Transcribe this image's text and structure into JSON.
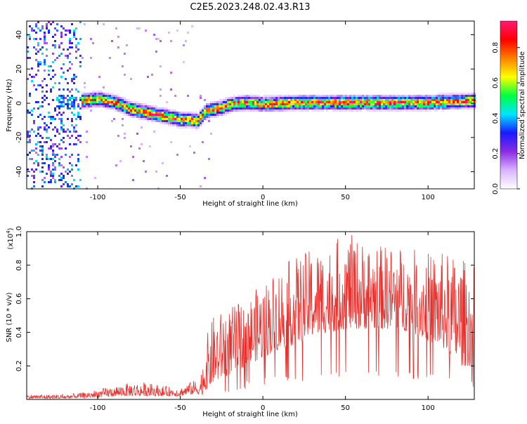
{
  "page_title": "C2E5.2023.248.02.43.R13",
  "chart_data": [
    {
      "type": "heatmap",
      "xlabel": "Height of straight line (km)",
      "ylabel": "Frequency (Hz)",
      "xlim": [
        -143,
        128
      ],
      "ylim": [
        -50,
        48
      ],
      "xticks": [
        -100,
        -50,
        0,
        50,
        100
      ],
      "yticks": [
        -40,
        -20,
        0,
        20,
        40
      ],
      "colorbar": {
        "label": "Normalized spectral amplitude",
        "range": [
          0.0,
          0.95
        ],
        "ticks": [
          "0.0",
          "0.2",
          "0.4",
          "0.6",
          "0.8"
        ],
        "tick_values": [
          0.0,
          0.2,
          0.4,
          0.6,
          0.8
        ],
        "colormap": [
          "#ffffff",
          "#d9b3ff",
          "#8a2be2",
          "#1a1aff",
          "#00e5ff",
          "#00ff40",
          "#ffff00",
          "#ff8000",
          "#ff0000",
          "#ff1a75"
        ]
      },
      "ridge": {
        "x": [
          -110,
          -100,
          -90,
          -80,
          -70,
          -60,
          -55,
          -50,
          -45,
          -40,
          -35,
          -30,
          -25,
          -20,
          -10,
          0,
          20,
          40,
          60,
          80,
          100,
          128
        ],
        "y": [
          2,
          3,
          1,
          -3,
          -5,
          -7,
          -8,
          -9,
          -9,
          -10,
          -4,
          -3,
          -2,
          0,
          1,
          0,
          1,
          1,
          1,
          1,
          1,
          2
        ]
      },
      "noise_region": {
        "x_range": [
          -143,
          -110
        ],
        "y_range": [
          -50,
          48
        ]
      }
    },
    {
      "type": "line",
      "xlabel": "Height of straight line (km)",
      "ylabel": "SNR (10 * v/v)",
      "y_multiplier": "(x10",
      "y_multiplier_exp": "4",
      "y_multiplier_close": ")",
      "xlim": [
        -143,
        128
      ],
      "ylim": [
        0,
        1.0
      ],
      "xticks": [
        -100,
        -50,
        0,
        50,
        100
      ],
      "yticks": [
        0.2,
        0.4,
        0.6,
        0.8,
        1.0
      ],
      "color": "#e8302c",
      "envelope": {
        "x": [
          -143,
          -120,
          -110,
          -100,
          -90,
          -80,
          -70,
          -60,
          -50,
          -45,
          -40,
          -38,
          -35,
          -30,
          -20,
          -10,
          0,
          10,
          20,
          30,
          40,
          50,
          60,
          70,
          80,
          90,
          100,
          110,
          120,
          128
        ],
        "low": [
          0.005,
          0.005,
          0.01,
          0.01,
          0.02,
          0.02,
          0.02,
          0.02,
          0.02,
          0.03,
          0.03,
          0.03,
          0.05,
          0.1,
          0.15,
          0.2,
          0.25,
          0.3,
          0.33,
          0.38,
          0.4,
          0.42,
          0.42,
          0.42,
          0.42,
          0.4,
          0.35,
          0.3,
          0.2,
          0.2
        ],
        "high": [
          0.03,
          0.03,
          0.04,
          0.06,
          0.08,
          0.1,
          0.1,
          0.08,
          0.07,
          0.1,
          0.12,
          0.12,
          0.35,
          0.5,
          0.55,
          0.6,
          0.7,
          0.8,
          0.85,
          0.9,
          0.92,
          1.0,
          0.95,
          0.92,
          0.92,
          0.9,
          0.88,
          0.88,
          0.85,
          0.8
        ]
      }
    }
  ]
}
